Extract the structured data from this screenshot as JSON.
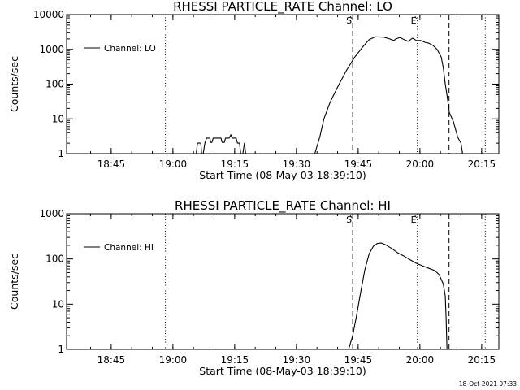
{
  "footer": {
    "timestamp": "18-Oct-2021 07:33"
  },
  "chart_data": [
    {
      "type": "line",
      "title": "RHESSI PARTICLE_RATE Channel: LO",
      "xlabel": "Start Time (08-May-03 18:39:10)",
      "ylabel": "Counts/sec",
      "yscale": "log",
      "ylim": [
        1,
        10000
      ],
      "xlim_minutes": [
        -5,
        100
      ],
      "x_ticks": [
        {
          "t": 5.83,
          "label": "18:45"
        },
        {
          "t": 20.83,
          "label": "19:00"
        },
        {
          "t": 35.83,
          "label": "19:15"
        },
        {
          "t": 50.83,
          "label": "19:30"
        },
        {
          "t": 65.83,
          "label": "19:45"
        },
        {
          "t": 80.83,
          "label": "20:00"
        },
        {
          "t": 95.83,
          "label": "20:15"
        }
      ],
      "y_ticks": [
        {
          "v": 1,
          "label": "1"
        },
        {
          "v": 10,
          "label": "10"
        },
        {
          "v": 100,
          "label": "100"
        },
        {
          "v": 1000,
          "label": "1000"
        },
        {
          "v": 10000,
          "label": "10000"
        }
      ],
      "legend": {
        "position": "top-left",
        "entries": [
          "Channel: LO"
        ]
      },
      "vlines": [
        {
          "t": 19.0,
          "style": "dotted"
        },
        {
          "t": 64.5,
          "style": "dashed",
          "label": "S"
        },
        {
          "t": 80.2,
          "style": "dotted",
          "label": "E"
        },
        {
          "t": 87.9,
          "style": "dashed"
        },
        {
          "t": 96.7,
          "style": "dotted"
        }
      ],
      "series": [
        {
          "name": "Channel: LO",
          "segments": [
            [
              [
                26.5,
                1.0
              ],
              [
                26.8,
                2.0
              ],
              [
                27.6,
                2.0
              ],
              [
                27.8,
                1.0
              ],
              [
                28.2,
                1.0
              ],
              [
                28.6,
                2.0
              ],
              [
                29.0,
                2.8
              ],
              [
                29.8,
                2.8
              ],
              [
                30.0,
                2.1
              ],
              [
                30.3,
                2.1
              ],
              [
                30.6,
                2.8
              ],
              [
                32.5,
                2.8
              ],
              [
                32.8,
                2.1
              ],
              [
                33.3,
                2.1
              ],
              [
                33.6,
                2.8
              ],
              [
                34.5,
                2.8
              ],
              [
                34.9,
                3.5
              ],
              [
                35.2,
                2.8
              ],
              [
                36.2,
                2.8
              ],
              [
                36.5,
                2.0
              ],
              [
                37.0,
                2.0
              ],
              [
                37.3,
                1.0
              ],
              [
                37.8,
                1.0
              ],
              [
                38.2,
                2.0
              ],
              [
                38.5,
                1.0
              ]
            ],
            [
              [
                55.3,
                1.0
              ],
              [
                56.5,
                3
              ],
              [
                57.5,
                10
              ],
              [
                59.0,
                30
              ],
              [
                61.0,
                90
              ],
              [
                63.0,
                250
              ],
              [
                65.0,
                600
              ],
              [
                67.0,
                1200
              ],
              [
                68.5,
                1900
              ],
              [
                70.0,
                2300
              ],
              [
                72.0,
                2250
              ],
              [
                73.5,
                2000
              ],
              [
                74.5,
                1800
              ],
              [
                75.0,
                2000
              ],
              [
                76.0,
                2200
              ],
              [
                77.0,
                1900
              ],
              [
                78.0,
                1700
              ],
              [
                79.0,
                2100
              ],
              [
                80.0,
                1800
              ],
              [
                81.0,
                1800
              ],
              [
                82.0,
                1600
              ],
              [
                83.0,
                1500
              ],
              [
                84.0,
                1300
              ],
              [
                85.0,
                1000
              ],
              [
                86.0,
                600
              ],
              [
                86.5,
                300
              ],
              [
                87.0,
                100
              ],
              [
                87.5,
                40
              ],
              [
                88.0,
                15
              ],
              [
                89.0,
                8
              ],
              [
                90.0,
                3
              ],
              [
                90.8,
                2
              ],
              [
                91.2,
                1.0
              ]
            ]
          ]
        }
      ]
    },
    {
      "type": "line",
      "title": "RHESSI PARTICLE_RATE Channel: HI",
      "xlabel": "Start Time (08-May-03 18:39:10)",
      "ylabel": "Counts/sec",
      "yscale": "log",
      "ylim": [
        1,
        1000
      ],
      "xlim_minutes": [
        -5,
        100
      ],
      "x_ticks": [
        {
          "t": 5.83,
          "label": "18:45"
        },
        {
          "t": 20.83,
          "label": "19:00"
        },
        {
          "t": 35.83,
          "label": "19:15"
        },
        {
          "t": 50.83,
          "label": "19:30"
        },
        {
          "t": 65.83,
          "label": "19:45"
        },
        {
          "t": 80.83,
          "label": "20:00"
        },
        {
          "t": 95.83,
          "label": "20:15"
        }
      ],
      "y_ticks": [
        {
          "v": 1,
          "label": "1"
        },
        {
          "v": 10,
          "label": "10"
        },
        {
          "v": 100,
          "label": "100"
        },
        {
          "v": 1000,
          "label": "1000"
        }
      ],
      "legend": {
        "position": "top-left",
        "entries": [
          "Channel: HI"
        ]
      },
      "vlines": [
        {
          "t": 19.0,
          "style": "dotted"
        },
        {
          "t": 64.5,
          "style": "dashed",
          "label": "S"
        },
        {
          "t": 80.2,
          "style": "dotted",
          "label": "E"
        },
        {
          "t": 87.9,
          "style": "dashed"
        },
        {
          "t": 96.7,
          "style": "dotted"
        }
      ],
      "series": [
        {
          "name": "Channel: HI",
          "segments": [
            [
              [
                63.5,
                1.0
              ],
              [
                64.5,
                2
              ],
              [
                65.5,
                6
              ],
              [
                66.5,
                20
              ],
              [
                67.5,
                60
              ],
              [
                68.5,
                130
              ],
              [
                69.5,
                190
              ],
              [
                70.5,
                220
              ],
              [
                71.5,
                225
              ],
              [
                72.5,
                205
              ],
              [
                74.0,
                170
              ],
              [
                75.5,
                135
              ],
              [
                77.0,
                115
              ],
              [
                78.5,
                95
              ],
              [
                80.0,
                80
              ],
              [
                81.5,
                70
              ],
              [
                83.0,
                62
              ],
              [
                84.5,
                55
              ],
              [
                85.5,
                45
              ],
              [
                86.5,
                28
              ],
              [
                87.0,
                15
              ],
              [
                87.2,
                5
              ],
              [
                87.4,
                1.0
              ]
            ]
          ]
        }
      ]
    }
  ]
}
